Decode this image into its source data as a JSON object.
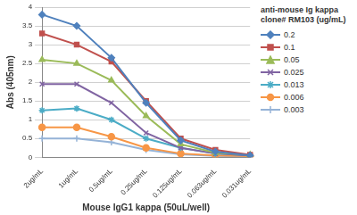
{
  "chart_data": {
    "type": "line",
    "x_label": "Mouse IgG1 kappa (50uL/well)",
    "y_label": "Abs (405nm)",
    "legend_title": "anti-mouse Ig kappa clone# RM103 (ug/mL)",
    "legend": "right",
    "grid": true,
    "categories": [
      "2ug/mL",
      "1ug/mL",
      "0.5ug/mL",
      "0.25ug/mL",
      "0.125ug/mL",
      "0.063ug/mL",
      "0.031ug/mL"
    ],
    "ylim": [
      0,
      4
    ],
    "yticks": [
      0,
      0.5,
      1,
      1.5,
      2,
      2.5,
      3,
      3.5,
      4
    ],
    "series": [
      {
        "name": "0.2",
        "color": "#4F81BD",
        "marker": "diamond",
        "values": [
          3.8,
          3.5,
          2.65,
          1.45,
          0.45,
          0.15,
          0.05
        ]
      },
      {
        "name": "0.1",
        "color": "#C0504D",
        "marker": "square",
        "values": [
          3.3,
          3.0,
          2.55,
          1.5,
          0.5,
          0.2,
          0.07
        ]
      },
      {
        "name": "0.05",
        "color": "#9BBB59",
        "marker": "triangle",
        "values": [
          2.6,
          2.5,
          2.05,
          1.1,
          0.35,
          0.12,
          0.07
        ]
      },
      {
        "name": "0.025",
        "color": "#8064A2",
        "marker": "x",
        "values": [
          1.95,
          1.95,
          1.45,
          0.65,
          0.25,
          0.1,
          0.05
        ]
      },
      {
        "name": "0.013",
        "color": "#4BACC6",
        "marker": "star",
        "values": [
          1.25,
          1.3,
          1.0,
          0.5,
          0.25,
          0.1,
          0.05
        ]
      },
      {
        "name": "0.006",
        "color": "#F79646",
        "marker": "circle",
        "values": [
          0.8,
          0.8,
          0.55,
          0.25,
          0.1,
          0.05,
          0.03
        ]
      },
      {
        "name": "0.003",
        "color": "#95B3D7",
        "marker": "plus",
        "values": [
          0.5,
          0.5,
          0.4,
          0.2,
          0.08,
          0.04,
          0.02
        ]
      }
    ]
  }
}
